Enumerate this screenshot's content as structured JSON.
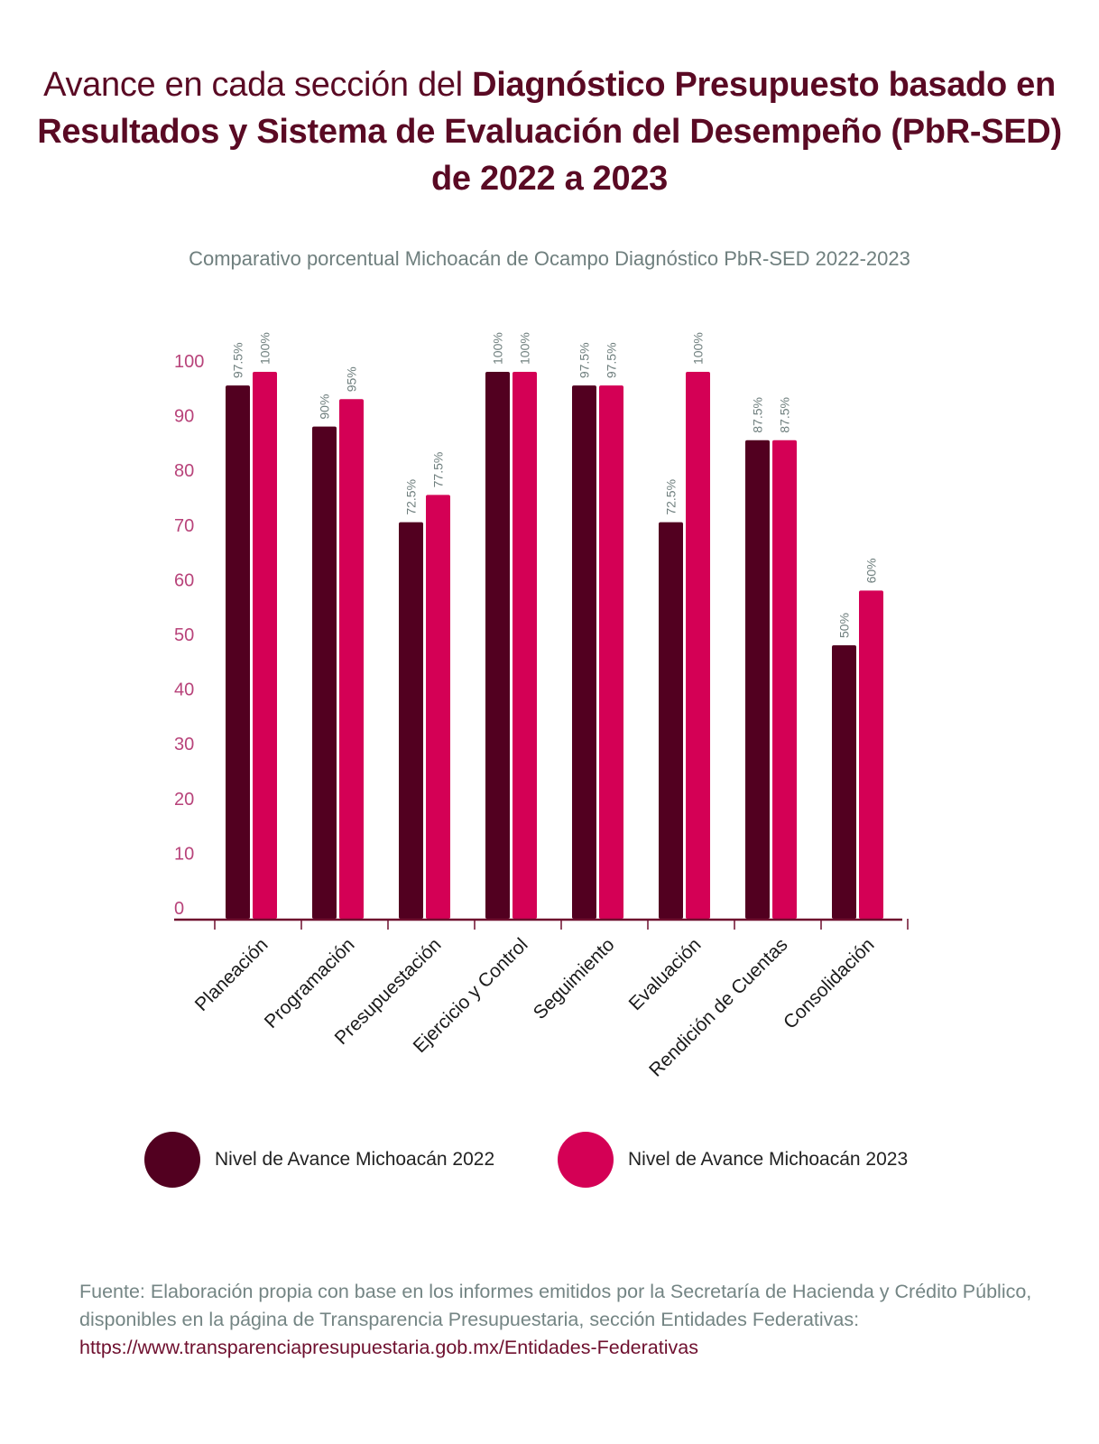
{
  "title": {
    "part1": "Avance en cada sección del ",
    "part2": "Diagnóstico Presupuesto basado en Resultados y Sistema de Evaluación del Desempeño (PbR-SED)  de 2022 a 2023"
  },
  "subtitle": "Comparativo porcentual Michoacán de Ocampo Diagnóstico PbR-SED 2022-2023",
  "colors": {
    "series_2022": "#520020",
    "series_2023": "#d40055",
    "ytick": "#b8437a",
    "data_label": "#6f7f7e",
    "axis": "#6e0f2e"
  },
  "chart_data": {
    "type": "bar",
    "title": "Comparativo porcentual Michoacán de Ocampo Diagnóstico PbR-SED 2022-2023",
    "xlabel": "",
    "ylabel": "",
    "ylim": [
      0,
      100
    ],
    "yticks": [
      "0",
      "10",
      "20",
      "30",
      "40",
      "50",
      "60",
      "70",
      "80",
      "90",
      "100"
    ],
    "categories": [
      "Planeación",
      "Programación",
      "Presupuestación",
      "Ejercicio y Control",
      "Seguimiento",
      "Evaluación",
      "Rendición de Cuentas",
      "Consolidación"
    ],
    "series": [
      {
        "name": "Nivel de Avance Michoacán 2022",
        "values": [
          97.5,
          90,
          72.5,
          100,
          97.5,
          72.5,
          87.5,
          50
        ],
        "labels": [
          "97.5%",
          "90%",
          "72.5%",
          "100%",
          "97.5%",
          "72.5%",
          "87.5%",
          "50%"
        ]
      },
      {
        "name": "Nivel de Avance Michoacán 2023",
        "values": [
          100,
          95,
          77.5,
          100,
          97.5,
          100,
          87.5,
          60
        ],
        "labels": [
          "100%",
          "95%",
          "77.5%",
          "100%",
          "97.5%",
          "100%",
          "87.5%",
          "60%"
        ]
      }
    ],
    "legend_position": "bottom",
    "grid": false
  },
  "legend": {
    "items": [
      {
        "label": "Nivel de Avance Michoacán 2022"
      },
      {
        "label": "Nivel de Avance Michoacán 2023"
      }
    ]
  },
  "source": {
    "text": "Fuente: Elaboración propia con base en los informes emitidos por la Secretaría de Hacienda y Crédito Público, disponibles en la página de Transparencia Presupuestaria, sección Entidades Federativas: ",
    "link": "https://www.transparenciapresupuestaria.gob.mx/Entidades-Federativas"
  }
}
